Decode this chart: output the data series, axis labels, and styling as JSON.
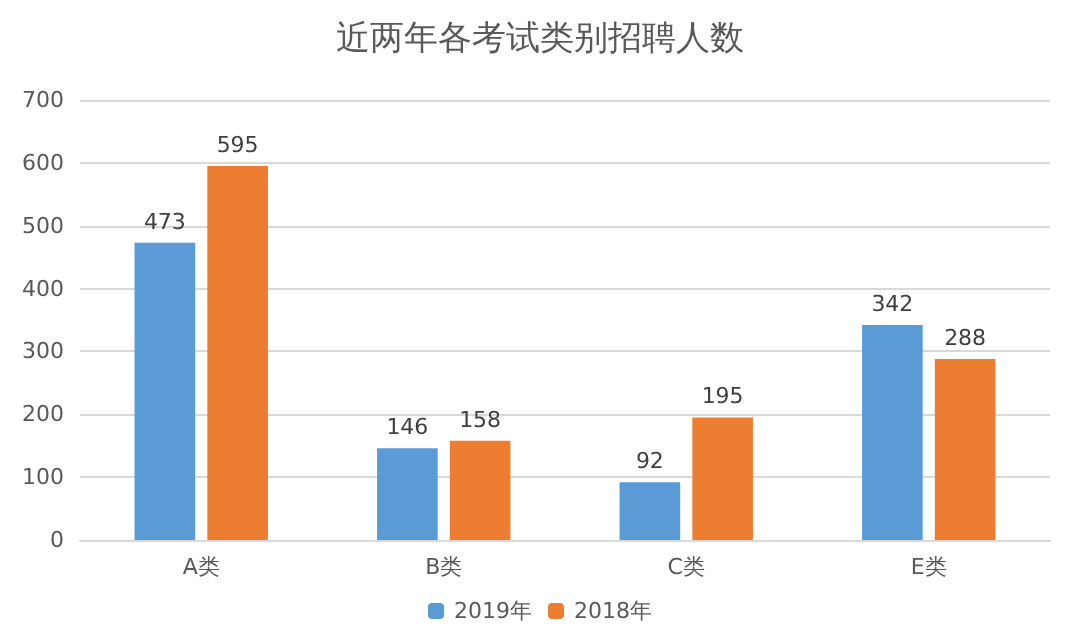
{
  "chart_data": {
    "type": "bar",
    "title": "近两年各考试类别招聘人数",
    "categories": [
      "A类",
      "B类",
      "C类",
      "E类"
    ],
    "series": [
      {
        "name": "2019年",
        "color": "#5b9bd5",
        "values": [
          473,
          146,
          92,
          342
        ]
      },
      {
        "name": "2018年",
        "color": "#ed7d31",
        "values": [
          595,
          158,
          195,
          288
        ]
      }
    ],
    "ylim": [
      0,
      700
    ],
    "yticks": [
      0,
      100,
      200,
      300,
      400,
      500,
      600,
      700
    ],
    "grid": "y",
    "legend": "bottom",
    "data_labels": true
  }
}
